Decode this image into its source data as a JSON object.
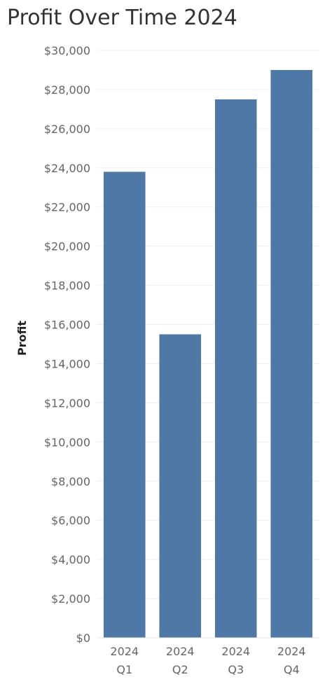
{
  "title": "Profit Over Time 2024",
  "chart_data": {
    "type": "bar",
    "title": "Profit Over Time 2024",
    "xlabel": "",
    "ylabel": "Profit",
    "categories": [
      [
        "2024",
        "Q1"
      ],
      [
        "2024",
        "Q2"
      ],
      [
        "2024",
        "Q3"
      ],
      [
        "2024",
        "Q4"
      ]
    ],
    "values": [
      23800,
      15500,
      27500,
      29000
    ],
    "ylim": [
      0,
      30000
    ],
    "yticks": [
      0,
      2000,
      4000,
      6000,
      8000,
      10000,
      12000,
      14000,
      16000,
      18000,
      20000,
      22000,
      24000,
      26000,
      28000,
      30000
    ],
    "ytick_labels": [
      "$0",
      "$2,000",
      "$4,000",
      "$6,000",
      "$8,000",
      "$10,000",
      "$12,000",
      "$14,000",
      "$16,000",
      "$18,000",
      "$20,000",
      "$22,000",
      "$24,000",
      "$26,000",
      "$28,000",
      "$30,000"
    ],
    "bar_color": "#4e79a7",
    "grid": true,
    "legend": "none"
  }
}
